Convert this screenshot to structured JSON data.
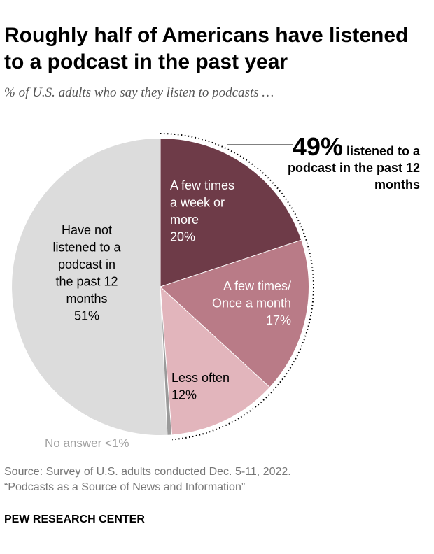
{
  "title": "Roughly half of Americans have listened to a podcast in the past year",
  "subtitle": "% of U.S. adults who say they listen to podcasts …",
  "callout": {
    "value": "49%",
    "text": " listened to a podcast in the past 12 months"
  },
  "chart_data": {
    "type": "pie",
    "slices": [
      {
        "lines": [
          "A few times",
          "a week or",
          "more"
        ],
        "pct_label": "20%",
        "value": 20,
        "color": "#6e3b48",
        "text_color": "#ffffff"
      },
      {
        "lines": [
          "A few times/",
          "Once a month"
        ],
        "pct_label": "17%",
        "value": 17,
        "color": "#b97b87",
        "text_color": "#ffffff"
      },
      {
        "lines": [
          "Less often"
        ],
        "pct_label": "12%",
        "value": 12,
        "color": "#e2b5bc",
        "text_color": "#000000"
      },
      {
        "lines": [],
        "pct_label": "",
        "value": 0.5,
        "color": "#9a9a9a",
        "text_color": "#000000"
      },
      {
        "lines": [
          "Have not",
          "listened to a",
          "podcast in",
          "the past 12",
          "months"
        ],
        "pct_label": "51%",
        "value": 51,
        "color": "#dcdcdc",
        "text_color": "#000000"
      }
    ],
    "no_answer_label": "No answer <1%"
  },
  "source": {
    "line1": "Source: Survey of U.S. adults conducted Dec. 5-11, 2022.",
    "line2": "“Podcasts as a Source of News and Information”"
  },
  "brand": "PEW RESEARCH CENTER"
}
